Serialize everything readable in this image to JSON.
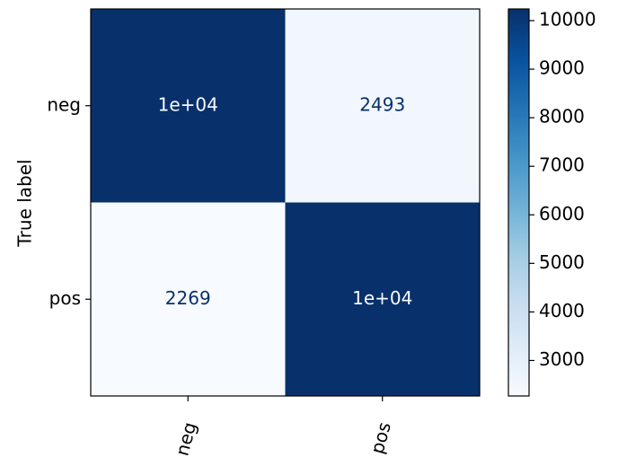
{
  "chart_data": {
    "type": "heatmap",
    "title": "",
    "xlabel": "",
    "ylabel": "True label",
    "x_categories": [
      "neg",
      "pos"
    ],
    "y_categories": [
      "neg",
      "pos"
    ],
    "values": [
      [
        10240,
        2493
      ],
      [
        2269,
        10230
      ]
    ],
    "cell_labels": [
      [
        "1e+04",
        "2493"
      ],
      [
        "2269",
        "1e+04"
      ]
    ],
    "colormap": "Blues",
    "colorbar": {
      "min": 2269,
      "max": 10240,
      "ticks": [
        3000,
        4000,
        5000,
        6000,
        7000,
        8000,
        9000,
        10000
      ],
      "tick_labels": [
        "3000",
        "4000",
        "5000",
        "6000",
        "7000",
        "8000",
        "9000",
        "10000"
      ]
    },
    "colors": {
      "low": "#f7fbff",
      "high": "#08306b",
      "text_on_dark": "#f7fbff",
      "text_on_light": "#08306b"
    }
  }
}
